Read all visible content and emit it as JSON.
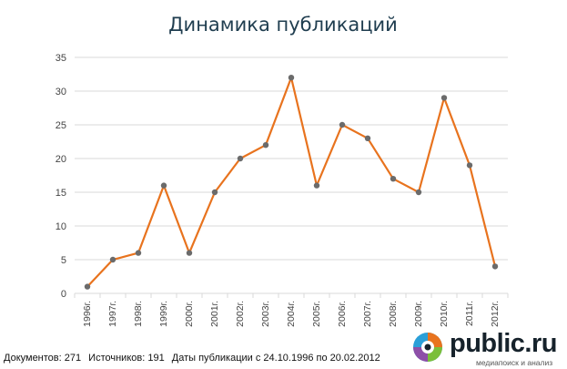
{
  "chart_data": {
    "type": "line",
    "title": "Динамика публикаций",
    "categories": [
      "1996г.",
      "1997г.",
      "1998г.",
      "1999г.",
      "2000г.",
      "2001г.",
      "2002г.",
      "2003г.",
      "2004г.",
      "2005г.",
      "2006г.",
      "2007г.",
      "2008г.",
      "2009г.",
      "2010г.",
      "2011г.",
      "2012г."
    ],
    "values": [
      1,
      5,
      6,
      16,
      6,
      15,
      20,
      22,
      32,
      16,
      25,
      23,
      17,
      15,
      29,
      19,
      4
    ],
    "ylim": [
      0,
      35
    ],
    "yticks": [
      "0",
      "5",
      "10",
      "15",
      "20",
      "25",
      "30",
      "35"
    ],
    "grid": true,
    "colors": {
      "line": "#e8731e",
      "marker": "#6b6b6b",
      "grid": "#d9d9d9"
    }
  },
  "footer": {
    "documents": "Документов: 271",
    "sources": "Источников: 191",
    "dates": "Даты публикации с 24.10.1996 по 20.02.2012"
  },
  "logo": {
    "text": "public.ru",
    "tagline": "медиапоиск и анализ",
    "icon": "public-ru-logo-icon"
  }
}
